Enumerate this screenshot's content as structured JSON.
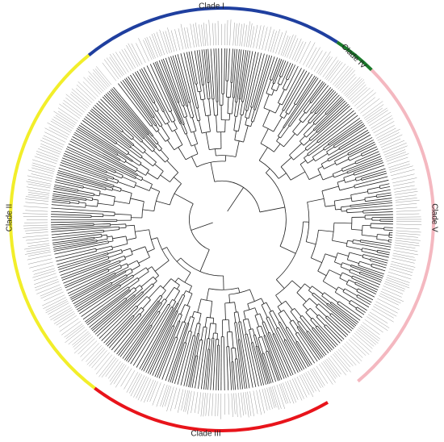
{
  "clades": [
    {
      "label": "Clade I",
      "color": "#1f3f9f"
    },
    {
      "label": "Clade IV",
      "color": "#1a7a2a"
    },
    {
      "label": "Clade V",
      "color": "#f4b8c0"
    },
    {
      "label": "Clade III",
      "color": "#e8141b"
    },
    {
      "label": "Clade II",
      "color": "#f2ee2a"
    }
  ]
}
